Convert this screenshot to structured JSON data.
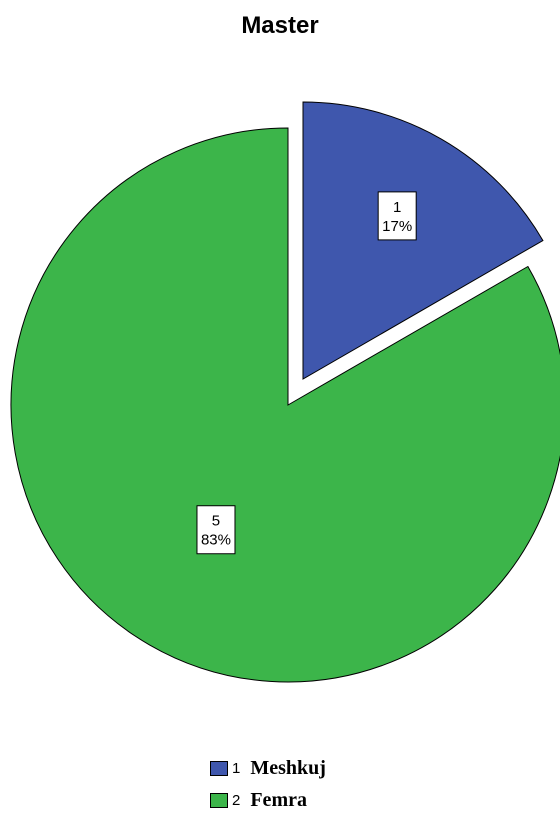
{
  "chart_data": {
    "type": "pie",
    "title": "Master",
    "slices": [
      {
        "code": "1",
        "label": "Meshkuj",
        "value": 1,
        "percent": "17%",
        "color": "#3f57ad",
        "exploded": true
      },
      {
        "code": "2",
        "label": "Femra",
        "value": 5,
        "percent": "83%",
        "color": "#3cb54a",
        "exploded": false
      }
    ],
    "legend_position": "bottom"
  }
}
